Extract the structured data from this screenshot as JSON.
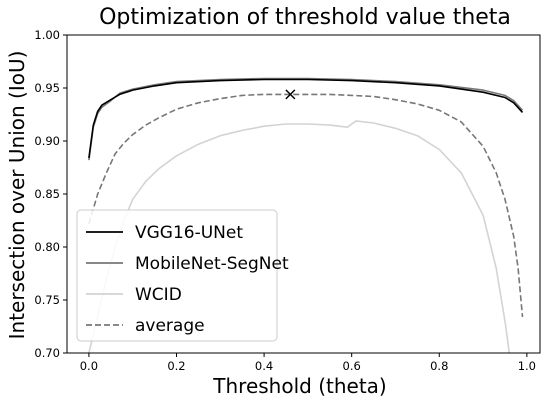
{
  "chart_data": {
    "type": "line",
    "title": "Optimization of threshold value theta",
    "xlabel": "Threshold  (theta)",
    "ylabel": "Intersection over Union (IoU)",
    "xlim": [
      -0.05,
      1.03
    ],
    "ylim": [
      0.7,
      1.0
    ],
    "xticks": [
      0.0,
      0.2,
      0.4,
      0.6,
      0.8,
      1.0
    ],
    "xtick_labels": [
      "0.0",
      "0.2",
      "0.4",
      "0.6",
      "0.8",
      "1.0"
    ],
    "yticks": [
      0.7,
      0.75,
      0.8,
      0.85,
      0.9,
      0.95,
      1.0
    ],
    "ytick_labels": [
      "0.70",
      "0.75",
      "0.80",
      "0.85",
      "0.90",
      "0.95",
      "1.00"
    ],
    "grid": false,
    "legend_position": "bottom-left",
    "series": [
      {
        "name": "VGG16-UNet",
        "color": "#000000",
        "style": "solid",
        "x": [
          0.0,
          0.01,
          0.02,
          0.03,
          0.05,
          0.07,
          0.1,
          0.15,
          0.2,
          0.3,
          0.4,
          0.5,
          0.6,
          0.7,
          0.8,
          0.9,
          0.95,
          0.97,
          0.99
        ],
        "y": [
          0.884,
          0.915,
          0.928,
          0.934,
          0.939,
          0.944,
          0.948,
          0.952,
          0.955,
          0.957,
          0.958,
          0.958,
          0.957,
          0.955,
          0.952,
          0.946,
          0.941,
          0.936,
          0.927
        ]
      },
      {
        "name": "MobileNet-SegNet",
        "color": "#777777",
        "style": "solid",
        "x": [
          0.0,
          0.01,
          0.02,
          0.03,
          0.05,
          0.07,
          0.1,
          0.15,
          0.2,
          0.3,
          0.4,
          0.5,
          0.6,
          0.7,
          0.8,
          0.9,
          0.95,
          0.97,
          0.99
        ],
        "y": [
          0.882,
          0.913,
          0.926,
          0.932,
          0.938,
          0.945,
          0.949,
          0.953,
          0.956,
          0.958,
          0.959,
          0.959,
          0.958,
          0.956,
          0.953,
          0.948,
          0.943,
          0.938,
          0.929
        ]
      },
      {
        "name": "WCID",
        "color": "#d3d3d3",
        "style": "solid",
        "x": [
          0.0,
          0.02,
          0.04,
          0.06,
          0.08,
          0.1,
          0.13,
          0.16,
          0.2,
          0.25,
          0.3,
          0.35,
          0.4,
          0.45,
          0.5,
          0.55,
          0.59,
          0.61,
          0.65,
          0.7,
          0.75,
          0.8,
          0.85,
          0.9,
          0.93,
          0.95,
          0.96
        ],
        "y": [
          0.7,
          0.735,
          0.77,
          0.8,
          0.825,
          0.845,
          0.862,
          0.874,
          0.886,
          0.897,
          0.905,
          0.91,
          0.914,
          0.916,
          0.916,
          0.915,
          0.913,
          0.919,
          0.917,
          0.912,
          0.905,
          0.892,
          0.87,
          0.83,
          0.78,
          0.73,
          0.7
        ]
      },
      {
        "name": "average",
        "color": "#777777",
        "style": "dashed",
        "x": [
          0.0,
          0.02,
          0.04,
          0.06,
          0.08,
          0.1,
          0.13,
          0.16,
          0.2,
          0.25,
          0.3,
          0.35,
          0.4,
          0.45,
          0.5,
          0.55,
          0.6,
          0.65,
          0.7,
          0.75,
          0.8,
          0.85,
          0.9,
          0.93,
          0.95,
          0.97,
          0.98,
          0.99
        ],
        "y": [
          0.822,
          0.85,
          0.87,
          0.888,
          0.898,
          0.906,
          0.915,
          0.922,
          0.93,
          0.936,
          0.94,
          0.943,
          0.944,
          0.944,
          0.944,
          0.944,
          0.943,
          0.942,
          0.939,
          0.935,
          0.929,
          0.918,
          0.895,
          0.87,
          0.845,
          0.81,
          0.78,
          0.734
        ]
      }
    ],
    "marker": {
      "symbol": "x",
      "x": 0.46,
      "y": 0.944,
      "color": "#000000"
    }
  }
}
